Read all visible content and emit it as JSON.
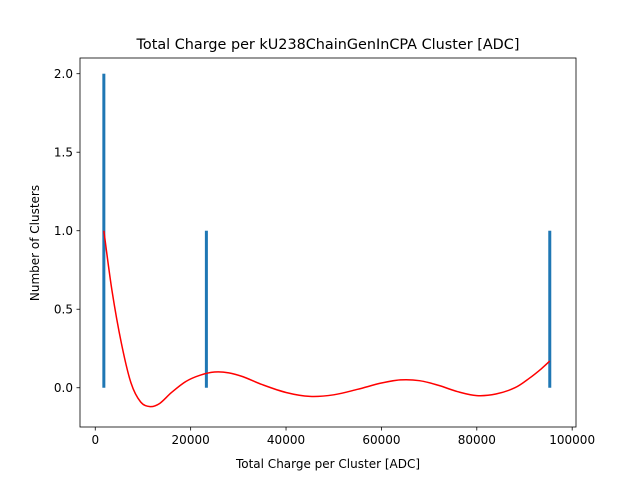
{
  "chart_data": {
    "type": "bar",
    "title": "Total Charge per kU238ChainGenInCPA Cluster [ADC]",
    "xlabel": "Total Charge per Cluster [ADC]",
    "ylabel": "Number of Clusters",
    "xlim": [
      -3200,
      100800
    ],
    "ylim": [
      -0.25,
      2.1
    ],
    "x_ticks": [
      0,
      20000,
      40000,
      60000,
      80000,
      100000
    ],
    "x_tick_labels": [
      "0",
      "20000",
      "40000",
      "60000",
      "80000",
      "100000"
    ],
    "y_ticks": [
      0.0,
      0.5,
      1.0,
      1.5,
      2.0
    ],
    "y_tick_labels": [
      "0.0",
      "0.5",
      "1.0",
      "1.5",
      "2.0"
    ],
    "bars": [
      {
        "x": 1800,
        "value": 2
      },
      {
        "x": 23300,
        "value": 1
      },
      {
        "x": 95300,
        "value": 1
      }
    ],
    "bar_color": "#1f77b4",
    "fit_curve": {
      "name": "fit",
      "color": "#ff0000",
      "x": [
        1800,
        3500,
        5500,
        7500,
        9500,
        11500,
        13500,
        16000,
        19000,
        22000,
        25000,
        28000,
        31000,
        35000,
        40000,
        45000,
        50000,
        55000,
        60000,
        64000,
        68000,
        72000,
        76000,
        80000,
        84000,
        88000,
        91000,
        93500,
        95300
      ],
      "y": [
        1.0,
        0.62,
        0.28,
        0.03,
        -0.09,
        -0.12,
        -0.1,
        -0.03,
        0.04,
        0.08,
        0.1,
        0.095,
        0.07,
        0.02,
        -0.03,
        -0.055,
        -0.045,
        -0.01,
        0.03,
        0.05,
        0.045,
        0.015,
        -0.025,
        -0.05,
        -0.04,
        0.0,
        0.06,
        0.12,
        0.17
      ]
    }
  }
}
